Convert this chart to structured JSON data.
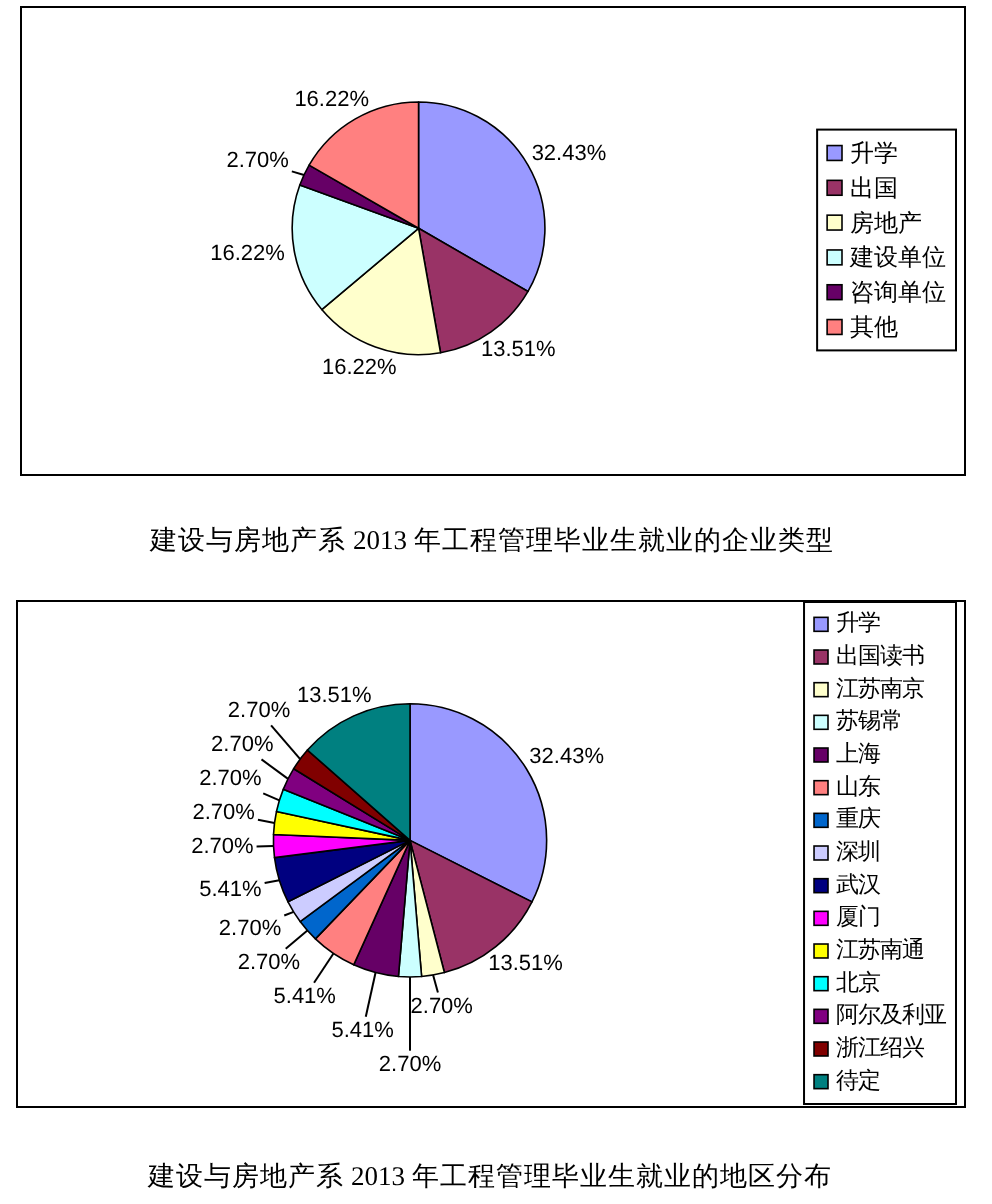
{
  "chart_data": [
    {
      "type": "pie",
      "title": "建设与房地产系 2013 年工程管理毕业生就业的企业类型",
      "categories": [
        "升学",
        "出国",
        "房地产",
        "建设单位",
        "咨询单位",
        "其他"
      ],
      "values": [
        32.43,
        13.51,
        16.22,
        16.22,
        2.7,
        16.22
      ],
      "colors": [
        "#9999ff",
        "#993366",
        "#ffffcc",
        "#ccffff",
        "#660066",
        "#ff8080"
      ],
      "value_labels": [
        "32.43%",
        "13.51%",
        "16.22%",
        "16.22%",
        "2.70%",
        "16.22%"
      ],
      "legend": "right"
    },
    {
      "type": "pie",
      "title": "建设与房地产系 2013 年工程管理毕业生就业的地区分布",
      "categories": [
        "升学",
        "出国读书",
        "江苏南京",
        "苏锡常",
        "上海",
        "山东",
        "重庆",
        "深圳",
        "武汉",
        "厦门",
        "江苏南通",
        "北京",
        "阿尔及利亚",
        "浙江绍兴",
        "待定"
      ],
      "values": [
        32.43,
        13.51,
        2.7,
        2.7,
        5.41,
        5.41,
        2.7,
        2.7,
        5.41,
        2.7,
        2.7,
        2.7,
        2.7,
        2.7,
        13.51
      ],
      "colors": [
        "#9999ff",
        "#993366",
        "#ffffcc",
        "#ccffff",
        "#660066",
        "#ff8080",
        "#0066cc",
        "#ccccff",
        "#000080",
        "#ff00ff",
        "#ffff00",
        "#00ffff",
        "#800080",
        "#800000",
        "#008080"
      ],
      "value_labels": [
        "32.43%",
        "13.51%",
        "2.70%",
        "2.70%",
        "5.41%",
        "5.41%",
        "2.70%",
        "2.70%",
        "5.41%",
        "2.70%",
        "2.70%",
        "2.70%",
        "2.70%",
        "2.70%",
        "13.51%"
      ],
      "legend": "right"
    }
  ]
}
